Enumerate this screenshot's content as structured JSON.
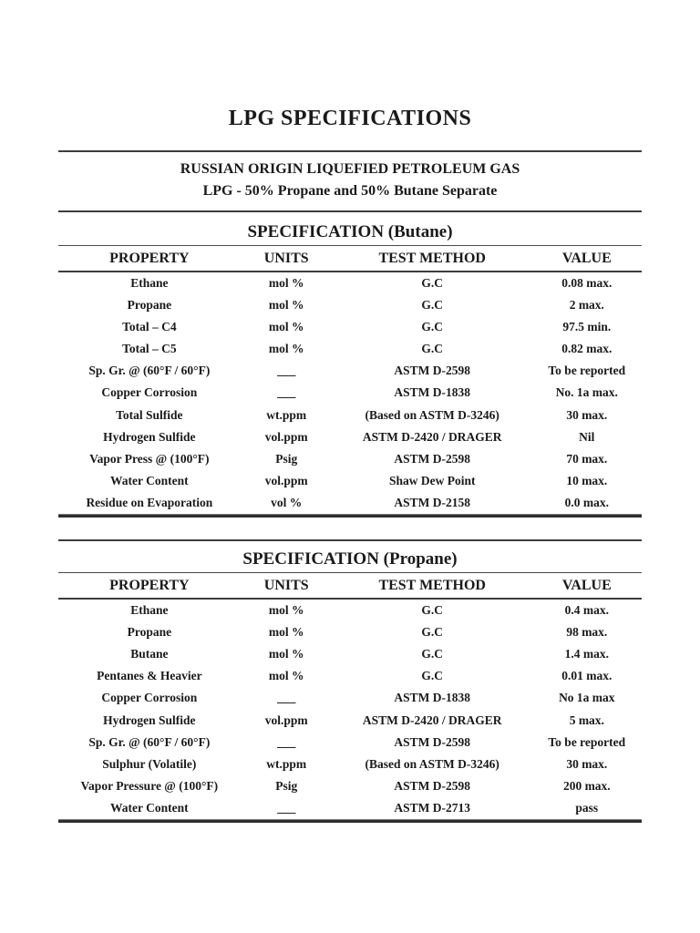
{
  "page": {
    "title": "LPG SPECIFICATIONS",
    "subtitle_line1": "RUSSIAN ORIGIN LIQUEFIED PETROLEUM GAS",
    "subtitle_line2": "LPG - 50% Propane and 50% Butane Separate"
  },
  "tables": [
    {
      "id": "butane",
      "title": "SPECIFICATION (Butane)",
      "columns": [
        "PROPERTY",
        "UNITS",
        "TEST METHOD",
        "VALUE"
      ],
      "rows": [
        [
          "Ethane",
          "mol %",
          "G.C",
          "0.08 max."
        ],
        [
          "Propane",
          "mol %",
          "G.C",
          "2 max."
        ],
        [
          "Total – C4",
          "mol %",
          "G.C",
          "97.5 min."
        ],
        [
          "Total – C5",
          "mol %",
          "G.C",
          "0.82 max."
        ],
        [
          "Sp. Gr. @ (60°F / 60°F)",
          "___",
          "ASTM D-2598",
          "To be reported"
        ],
        [
          "Copper Corrosion",
          "___",
          "ASTM D-1838",
          "No. 1a max."
        ],
        [
          "Total Sulfide",
          "wt.ppm",
          "(Based on ASTM D-3246)",
          "30 max."
        ],
        [
          "Hydrogen Sulfide",
          "vol.ppm",
          "ASTM D-2420 / DRAGER",
          "Nil"
        ],
        [
          "Vapor Press @ (100°F)",
          "Psig",
          "ASTM D-2598",
          "70 max."
        ],
        [
          "Water Content",
          "vol.ppm",
          "Shaw Dew Point",
          "10 max."
        ],
        [
          "Residue on Evaporation",
          "vol %",
          "ASTM D-2158",
          "0.0 max."
        ]
      ]
    },
    {
      "id": "propane",
      "title": "SPECIFICATION (Propane)",
      "columns": [
        "PROPERTY",
        "UNITS",
        "TEST METHOD",
        "VALUE"
      ],
      "rows": [
        [
          "Ethane",
          "mol %",
          "G.C",
          "0.4 max."
        ],
        [
          "Propane",
          "mol %",
          "G.C",
          "98 max."
        ],
        [
          "Butane",
          "mol %",
          "G.C",
          "1.4 max."
        ],
        [
          "Pentanes & Heavier",
          "mol %",
          "G.C",
          "0.01 max."
        ],
        [
          "Copper Corrosion",
          "___",
          "ASTM D-1838",
          "No 1a max"
        ],
        [
          "Hydrogen Sulfide",
          "vol.ppm",
          "ASTM D-2420 / DRAGER",
          "5 max."
        ],
        [
          "Sp. Gr. @ (60°F / 60°F)",
          "___",
          "ASTM D-2598",
          "To be reported"
        ],
        [
          "Sulphur (Volatile)",
          "wt.ppm",
          "(Based on ASTM D-3246)",
          "30 max."
        ],
        [
          "Vapor Pressure @ (100°F)",
          "Psig",
          "ASTM D-2598",
          "200 max."
        ],
        [
          "Water Content",
          "___",
          "ASTM D-2713",
          "pass"
        ]
      ]
    }
  ]
}
